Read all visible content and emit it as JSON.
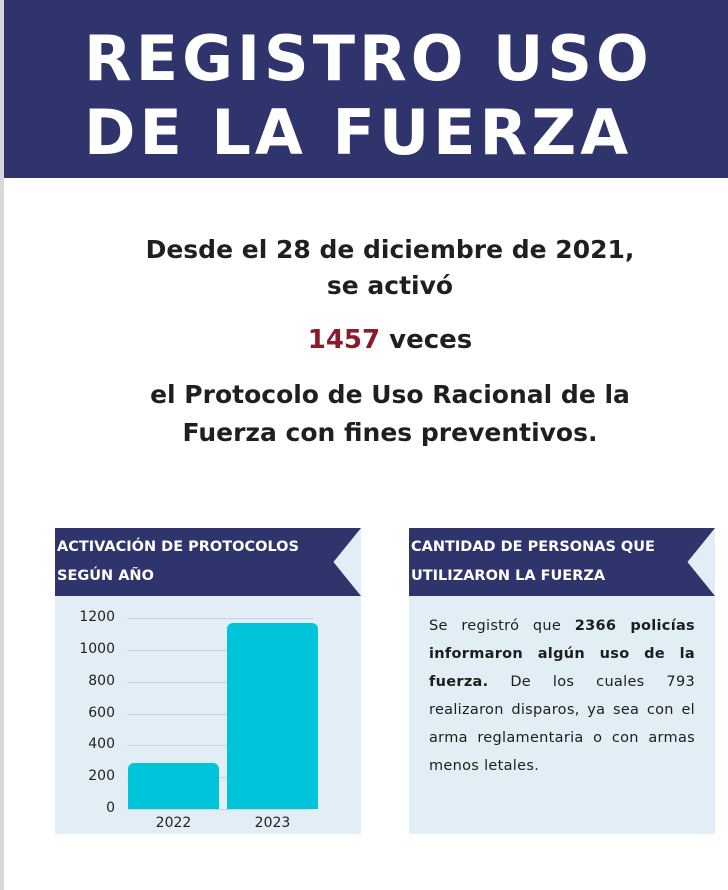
{
  "header": {
    "title_line1": "REGISTRO USO",
    "title_line2": "DE LA FUERZA",
    "background": "#2f356c"
  },
  "intro": {
    "line1": "Desde el 28 de diciembre de 2021,",
    "line2": "se activó",
    "count": "1457",
    "count_suffix": " veces",
    "line3": "el Protocolo de Uso Racional de la",
    "line4": "Fuerza con fines preventivos.",
    "highlight_color": "#8b1a2b"
  },
  "panels": {
    "left": {
      "title_line1": "ACTIVACIÓN DE PROTOCOLOS",
      "title_line2": "SEGÚN AÑO"
    },
    "right": {
      "title_line1": "CANTIDAD DE PERSONAS QUE",
      "title_line2": "UTILIZARON LA FUERZA",
      "text_plain_1": "Se registró que ",
      "text_bold": "2366 policías informaron algún uso de la fuerza.",
      "text_plain_2": " De los cuales 793 realizaron disparos, ya sea con el arma reglamentaria o con armas menos letales."
    }
  },
  "chart_data": {
    "type": "bar",
    "title": "ACTIVACIÓN DE PROTOCOLOS SEGÚN AÑO",
    "categories": [
      "2022",
      "2023"
    ],
    "values": [
      290,
      1167
    ],
    "xlabel": "",
    "ylabel": "",
    "ylim": [
      0,
      1200
    ],
    "yticks": [
      "0",
      "200",
      "400",
      "600",
      "800",
      "1000",
      "1200"
    ],
    "grid": true,
    "legend": null,
    "bar_color": "#00c4d9"
  }
}
